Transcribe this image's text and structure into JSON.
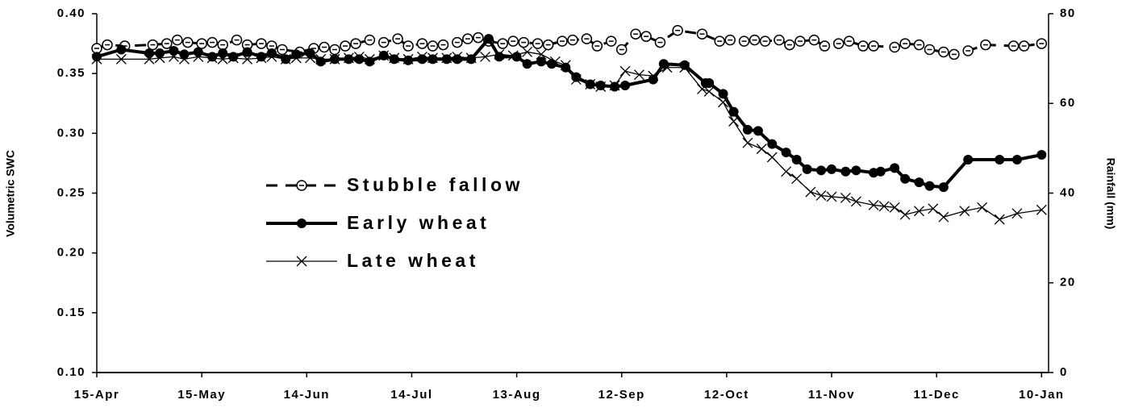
{
  "chart_data": {
    "type": "line",
    "y_label": "Volumetric SWC",
    "y2_label": "Rainfall (mm)",
    "xlim": [
      0,
      272
    ],
    "xticks": [
      {
        "value": 0,
        "label": "15-Apr"
      },
      {
        "value": 30,
        "label": "15-May"
      },
      {
        "value": 60,
        "label": "14-Jun"
      },
      {
        "value": 90,
        "label": "14-Jul"
      },
      {
        "value": 120,
        "label": "13-Aug"
      },
      {
        "value": 150,
        "label": "12-Sep"
      },
      {
        "value": 180,
        "label": "12-Oct"
      },
      {
        "value": 210,
        "label": "11-Nov"
      },
      {
        "value": 240,
        "label": "11-Dec"
      },
      {
        "value": 270,
        "label": "10-Jan"
      }
    ],
    "ylim": [
      0.1,
      0.4
    ],
    "yticks": [
      {
        "value": 0.1,
        "label": "0.10"
      },
      {
        "value": 0.15,
        "label": "0.15"
      },
      {
        "value": 0.2,
        "label": "0.20"
      },
      {
        "value": 0.25,
        "label": "0.25"
      },
      {
        "value": 0.3,
        "label": "0.30"
      },
      {
        "value": 0.35,
        "label": "0.35"
      },
      {
        "value": 0.4,
        "label": "0.40"
      }
    ],
    "y2lim": [
      0,
      80
    ],
    "y2ticks": [
      0,
      20,
      40,
      60,
      80
    ],
    "legend_position": "left",
    "series": [
      {
        "name": "Stubble fallow",
        "color": "#000000",
        "marker": "circle-open",
        "line_style": "dashed",
        "line_width": 3,
        "x": [
          0,
          3,
          8,
          16,
          20,
          23,
          26,
          30,
          33,
          36,
          40,
          43,
          47,
          50,
          53,
          58,
          62,
          65,
          68,
          71,
          74,
          78,
          82,
          86,
          89,
          93,
          96,
          99,
          103,
          106,
          109,
          112,
          116,
          119,
          122,
          126,
          129,
          133,
          136,
          140,
          143,
          147,
          150,
          154,
          157,
          161,
          166,
          173,
          178,
          181,
          185,
          188,
          191,
          195,
          198,
          201,
          205,
          208,
          212,
          215,
          219,
          222,
          228,
          231,
          235,
          238,
          242,
          245,
          249,
          254,
          262,
          265,
          270
        ],
        "values": [
          0.371,
          0.374,
          0.373,
          0.374,
          0.375,
          0.378,
          0.376,
          0.375,
          0.376,
          0.374,
          0.378,
          0.374,
          0.375,
          0.373,
          0.37,
          0.368,
          0.371,
          0.372,
          0.37,
          0.373,
          0.375,
          0.378,
          0.376,
          0.379,
          0.373,
          0.375,
          0.373,
          0.374,
          0.376,
          0.379,
          0.38,
          0.377,
          0.375,
          0.377,
          0.376,
          0.375,
          0.374,
          0.377,
          0.378,
          0.379,
          0.373,
          0.377,
          0.37,
          0.383,
          0.381,
          0.376,
          0.386,
          0.383,
          0.377,
          0.378,
          0.377,
          0.378,
          0.377,
          0.378,
          0.374,
          0.377,
          0.378,
          0.373,
          0.375,
          0.377,
          0.373,
          0.373,
          0.372,
          0.375,
          0.374,
          0.37,
          0.368,
          0.366,
          0.369,
          0.374,
          0.373,
          0.373,
          0.375
        ]
      },
      {
        "name": "Early wheat",
        "color": "#000000",
        "marker": "circle",
        "line_style": "solid",
        "line_width": 4,
        "x": [
          0,
          7,
          15,
          18,
          22,
          25,
          29,
          33,
          36,
          39,
          43,
          47,
          50,
          54,
          57,
          61,
          64,
          68,
          72,
          75,
          78,
          82,
          85,
          89,
          93,
          96,
          100,
          103,
          107,
          112,
          115,
          120,
          123,
          127,
          130,
          134,
          137,
          141,
          144,
          148,
          151,
          159,
          162,
          168,
          174,
          175,
          179,
          182,
          186,
          189,
          193,
          197,
          200,
          203,
          207,
          210,
          214,
          217,
          222,
          224,
          228,
          231,
          235,
          238,
          242,
          249,
          258,
          263,
          270
        ],
        "values": [
          0.364,
          0.37,
          0.367,
          0.367,
          0.369,
          0.366,
          0.368,
          0.364,
          0.367,
          0.364,
          0.368,
          0.364,
          0.367,
          0.362,
          0.366,
          0.367,
          0.36,
          0.362,
          0.362,
          0.362,
          0.36,
          0.365,
          0.362,
          0.361,
          0.362,
          0.362,
          0.362,
          0.362,
          0.362,
          0.379,
          0.364,
          0.364,
          0.358,
          0.36,
          0.358,
          0.355,
          0.347,
          0.341,
          0.34,
          0.339,
          0.34,
          0.345,
          0.358,
          0.357,
          0.342,
          0.342,
          0.333,
          0.318,
          0.303,
          0.302,
          0.291,
          0.284,
          0.278,
          0.27,
          0.269,
          0.27,
          0.268,
          0.269,
          0.267,
          0.268,
          0.271,
          0.262,
          0.259,
          0.256,
          0.255,
          0.278,
          0.278,
          0.278,
          0.282
        ]
      },
      {
        "name": "Late wheat",
        "color": "#000000",
        "marker": "x",
        "line_style": "solid",
        "line_width": 1.3,
        "x": [
          0,
          7,
          15,
          18,
          22,
          25,
          29,
          33,
          36,
          39,
          43,
          47,
          50,
          54,
          57,
          61,
          64,
          68,
          72,
          75,
          78,
          82,
          85,
          89,
          93,
          96,
          100,
          103,
          107,
          111,
          115,
          119,
          123,
          127,
          131,
          134,
          137,
          141,
          144,
          148,
          151,
          155,
          159,
          163,
          168,
          173,
          175,
          179,
          182,
          186,
          190,
          193,
          197,
          200,
          204,
          207,
          210,
          214,
          217,
          222,
          225,
          228,
          231,
          235,
          239,
          242,
          248,
          253,
          258,
          263,
          270
        ],
        "values": [
          0.362,
          0.362,
          0.362,
          0.363,
          0.364,
          0.362,
          0.364,
          0.363,
          0.362,
          0.363,
          0.362,
          0.363,
          0.364,
          0.362,
          0.363,
          0.363,
          0.362,
          0.362,
          0.363,
          0.364,
          0.362,
          0.365,
          0.363,
          0.362,
          0.364,
          0.363,
          0.363,
          0.364,
          0.363,
          0.364,
          0.366,
          0.365,
          0.368,
          0.366,
          0.36,
          0.357,
          0.345,
          0.341,
          0.339,
          0.34,
          0.352,
          0.349,
          0.348,
          0.355,
          0.355,
          0.337,
          0.335,
          0.326,
          0.31,
          0.292,
          0.287,
          0.28,
          0.268,
          0.262,
          0.251,
          0.248,
          0.247,
          0.246,
          0.243,
          0.24,
          0.239,
          0.238,
          0.232,
          0.235,
          0.237,
          0.23,
          0.235,
          0.238,
          0.228,
          0.233,
          0.236
        ]
      }
    ]
  }
}
